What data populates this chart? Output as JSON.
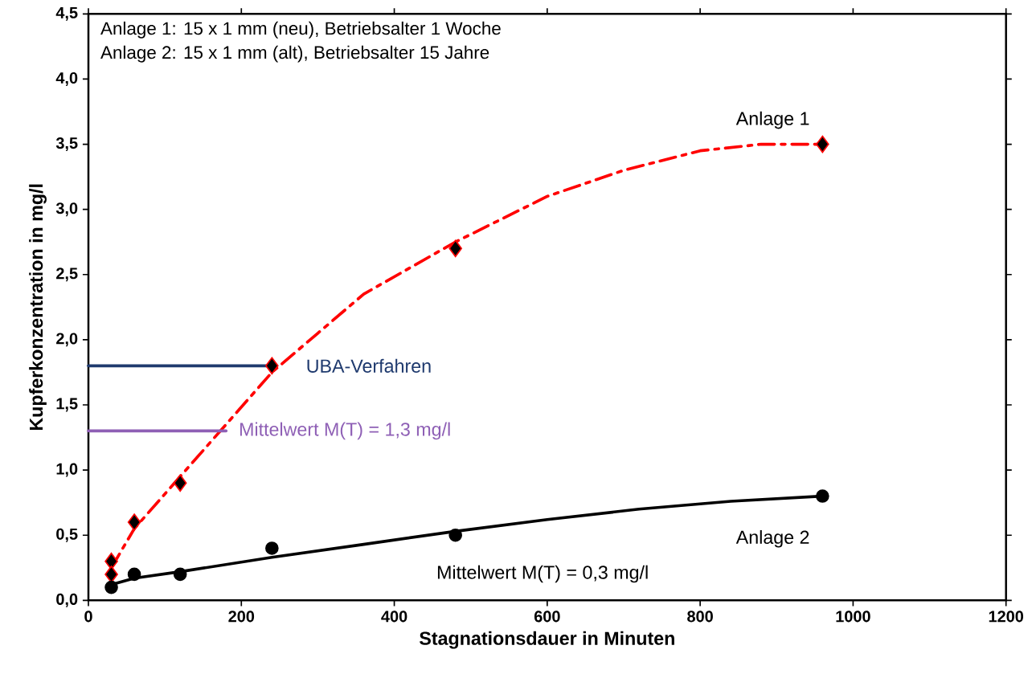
{
  "chart_data": {
    "type": "scatter",
    "xlabel": "Stagnationsdauer in Minuten",
    "ylabel": "Kupferkonzentration in mg/l",
    "xlim": [
      0,
      1200
    ],
    "xticks": [
      0,
      200,
      400,
      600,
      800,
      1000,
      1200
    ],
    "ylim": [
      0,
      4.5
    ],
    "yticks": [
      {
        "value": 0,
        "label": "0,0"
      },
      {
        "value": 0.5,
        "label": "0,5"
      },
      {
        "value": 1,
        "label": "1,0"
      },
      {
        "value": 1.5,
        "label": "1,5"
      },
      {
        "value": 2,
        "label": "2,0"
      },
      {
        "value": 2.5,
        "label": "2,5"
      },
      {
        "value": 3,
        "label": "3,0"
      },
      {
        "value": 3.5,
        "label": "3,5"
      },
      {
        "value": 4,
        "label": "4,0"
      },
      {
        "value": 4.5,
        "label": "4,5"
      }
    ],
    "grid": false,
    "legend": false,
    "series": [
      {
        "name": "Anlage 1",
        "marker": "diamond",
        "color": "#ff0000",
        "x": [
          30,
          30,
          60,
          120,
          240,
          480,
          960
        ],
        "values": [
          0.3,
          0.2,
          0.6,
          0.9,
          1.8,
          2.7,
          3.5
        ]
      },
      {
        "type": "line",
        "line_style": "dashed",
        "color": "#ff0000",
        "x": [
          30,
          60,
          120,
          180,
          240,
          300,
          360,
          420,
          480,
          600,
          700,
          800,
          880,
          960
        ],
        "values": [
          0.25,
          0.55,
          0.95,
          1.35,
          1.75,
          2.05,
          2.35,
          2.55,
          2.75,
          3.1,
          3.3,
          3.45,
          3.5,
          3.5
        ]
      },
      {
        "name": "Anlage 2",
        "marker": "circle",
        "color": "#000000",
        "x": [
          30,
          60,
          120,
          240,
          480,
          960
        ],
        "values": [
          0.1,
          0.2,
          0.2,
          0.4,
          0.5,
          0.8
        ]
      },
      {
        "type": "line",
        "line_style": "solid",
        "color": "#000000",
        "x": [
          30,
          60,
          120,
          240,
          360,
          480,
          600,
          720,
          840,
          960
        ],
        "values": [
          0.12,
          0.17,
          0.22,
          0.33,
          0.43,
          0.53,
          0.62,
          0.7,
          0.76,
          0.8
        ]
      },
      {
        "name": "UBA-Verfahren",
        "type": "line",
        "line_style": "solid",
        "color": "#1f3a6e",
        "x": [
          0,
          240
        ],
        "values": [
          1.8,
          1.8
        ]
      },
      {
        "name": "Mittelwert M(T) = 1,3 mg/l",
        "type": "line",
        "line_style": "solid",
        "color": "#8e5fb5",
        "x": [
          0,
          180
        ],
        "values": [
          1.3,
          1.3
        ]
      }
    ],
    "annotations": [
      "Anlage 1: 15 x 1 mm (neu), Betriebsalter 1 Woche",
      "Anlage 2: 15 x 1 mm (alt), Betriebsalter 15 Jahre",
      "Mittelwert M(T) = 0,3 mg/l"
    ]
  }
}
